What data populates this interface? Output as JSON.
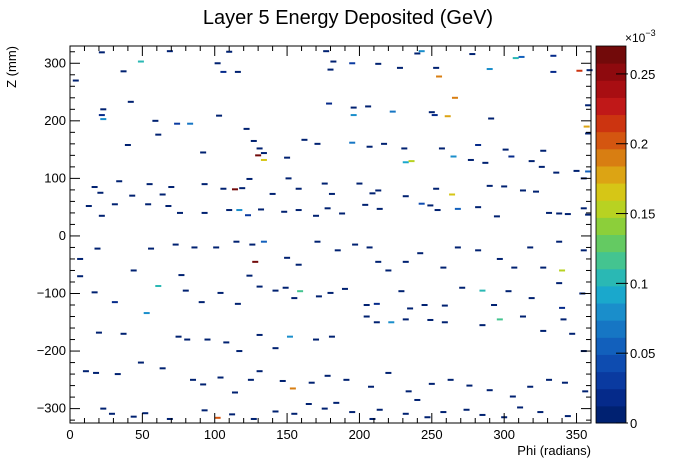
{
  "chart_data": {
    "type": "heatmap",
    "title": "Layer 5 Energy Deposited (GeV)",
    "xlabel": "Phi (radians)",
    "ylabel": "Z (mm)",
    "xlim": [
      0,
      360
    ],
    "ylim": [
      -325,
      330
    ],
    "x_ticks": [
      0,
      50,
      100,
      150,
      200,
      250,
      300,
      350
    ],
    "y_ticks": [
      -300,
      -200,
      -100,
      0,
      100,
      200,
      300
    ],
    "colorbar": {
      "min": 0,
      "max": 0.00027,
      "ticks": [
        0,
        0.05,
        0.1,
        0.15,
        0.2,
        0.25
      ],
      "tick_labels": [
        "0",
        "0.05",
        "0.1",
        "0.15",
        "0.2",
        "0.25"
      ],
      "multiplier_label": "×10",
      "multiplier_exponent": "−3",
      "colors": [
        "#002171",
        "#052a8a",
        "#0a3aa0",
        "#0e4cb0",
        "#1260bc",
        "#1676c4",
        "#1a8ecb",
        "#1aa8cc",
        "#2ab8b4",
        "#44c490",
        "#64ca62",
        "#8ccf3a",
        "#b8d222",
        "#d6c616",
        "#dca414",
        "#d87e12",
        "#d45610",
        "#cc3410",
        "#c01818",
        "#a80e12",
        "#8e0a0e",
        "#720a0a"
      ]
    },
    "points": [
      [
        22,
        319,
        0.01
      ],
      [
        69,
        321,
        0.01
      ],
      [
        110,
        320,
        0.01
      ],
      [
        177,
        321,
        0.01
      ],
      [
        243,
        321,
        0.08
      ],
      [
        240,
        317,
        0.01
      ],
      [
        278,
        316,
        0.01
      ],
      [
        308,
        309,
        0.1
      ],
      [
        312,
        311,
        0.05
      ],
      [
        334,
        313,
        0.02
      ],
      [
        37,
        286,
        0.01
      ],
      [
        49,
        303,
        0.1
      ],
      [
        102,
        300,
        0.01
      ],
      [
        106,
        285,
        0.02
      ],
      [
        116,
        285,
        0.01
      ],
      [
        182,
        303,
        0.01
      ],
      [
        180,
        289,
        0.01
      ],
      [
        195,
        300,
        0.03
      ],
      [
        213,
        299,
        0.01
      ],
      [
        228,
        292,
        0.01
      ],
      [
        253,
        292,
        0.01
      ],
      [
        255,
        277,
        0.19
      ],
      [
        290,
        290,
        0.08
      ],
      [
        334,
        285,
        0.02
      ],
      [
        352,
        287,
        0.22
      ],
      [
        359,
        288,
        0.01
      ],
      [
        4,
        270,
        0.01
      ],
      [
        42,
        233,
        0.01
      ],
      [
        23,
        220,
        0.01
      ],
      [
        22,
        210,
        0.02
      ],
      [
        23,
        203,
        0.08
      ],
      [
        59,
        200,
        0.01
      ],
      [
        74,
        195,
        0.03
      ],
      [
        83,
        195,
        0.07
      ],
      [
        103,
        209,
        0.01
      ],
      [
        179,
        230,
        0.02
      ],
      [
        196,
        223,
        0.01
      ],
      [
        196,
        210,
        0.08
      ],
      [
        206,
        225,
        0.01
      ],
      [
        223,
        216,
        0.07
      ],
      [
        250,
        215,
        0.01
      ],
      [
        252,
        210,
        0.02
      ],
      [
        261,
        208,
        0.18
      ],
      [
        266,
        240,
        0.19
      ],
      [
        291,
        204,
        0.01
      ],
      [
        358,
        227,
        0.01
      ],
      [
        357,
        190,
        0.18
      ],
      [
        358,
        178,
        0.01
      ],
      [
        40,
        158,
        0.01
      ],
      [
        61,
        176,
        0.01
      ],
      [
        92,
        145,
        0.01
      ],
      [
        122,
        186,
        0.01
      ],
      [
        127,
        165,
        0.01
      ],
      [
        131,
        152,
        0.01
      ],
      [
        134,
        144,
        0.01
      ],
      [
        130,
        140,
        0.27
      ],
      [
        134,
        132,
        0.17
      ],
      [
        150,
        136,
        0.01
      ],
      [
        162,
        167,
        0.01
      ],
      [
        171,
        160,
        0.01
      ],
      [
        195,
        162,
        0.07
      ],
      [
        207,
        155,
        0.01
      ],
      [
        217,
        160,
        0.01
      ],
      [
        231,
        152,
        0.01
      ],
      [
        232,
        128,
        0.09
      ],
      [
        236,
        130,
        0.15
      ],
      [
        257,
        152,
        0.01
      ],
      [
        265,
        138,
        0.08
      ],
      [
        277,
        132,
        0.01
      ],
      [
        282,
        158,
        0.02
      ],
      [
        287,
        127,
        0.01
      ],
      [
        301,
        150,
        0.01
      ],
      [
        305,
        138,
        0.02
      ],
      [
        319,
        130,
        0.01
      ],
      [
        327,
        148,
        0.01
      ],
      [
        326,
        120,
        0.01
      ],
      [
        336,
        110,
        0.01
      ],
      [
        350,
        113,
        0.01
      ],
      [
        355,
        100,
        0.01
      ],
      [
        358,
        112,
        0.06
      ],
      [
        17,
        85,
        0.01
      ],
      [
        21,
        75,
        0.01
      ],
      [
        34,
        95,
        0.01
      ],
      [
        43,
        70,
        0.01
      ],
      [
        55,
        90,
        0.01
      ],
      [
        64,
        72,
        0.01
      ],
      [
        70,
        85,
        0.01
      ],
      [
        93,
        90,
        0.01
      ],
      [
        106,
        82,
        0.01
      ],
      [
        114,
        81,
        0.27
      ],
      [
        119,
        83,
        0.01
      ],
      [
        124,
        99,
        0.01
      ],
      [
        140,
        73,
        0.01
      ],
      [
        151,
        100,
        0.01
      ],
      [
        158,
        82,
        0.01
      ],
      [
        176,
        91,
        0.01
      ],
      [
        181,
        73,
        0.01
      ],
      [
        200,
        91,
        0.01
      ],
      [
        209,
        74,
        0.01
      ],
      [
        213,
        79,
        0.01
      ],
      [
        232,
        69,
        0.01
      ],
      [
        253,
        82,
        0.01
      ],
      [
        264,
        72,
        0.16
      ],
      [
        290,
        87,
        0.01
      ],
      [
        300,
        86,
        0.01
      ],
      [
        313,
        79,
        0.01
      ],
      [
        322,
        77,
        0.01
      ],
      [
        13,
        52,
        0.01
      ],
      [
        22,
        35,
        0.01
      ],
      [
        31,
        55,
        0.01
      ],
      [
        54,
        55,
        0.01
      ],
      [
        68,
        52,
        0.01
      ],
      [
        76,
        40,
        0.01
      ],
      [
        93,
        40,
        0.01
      ],
      [
        110,
        45,
        0.01
      ],
      [
        117,
        45,
        0.08
      ],
      [
        123,
        36,
        0.03
      ],
      [
        132,
        46,
        0.01
      ],
      [
        148,
        42,
        0.01
      ],
      [
        158,
        45,
        0.01
      ],
      [
        170,
        35,
        0.01
      ],
      [
        178,
        48,
        0.01
      ],
      [
        188,
        39,
        0.01
      ],
      [
        204,
        54,
        0.01
      ],
      [
        214,
        47,
        0.01
      ],
      [
        243,
        56,
        0.04
      ],
      [
        249,
        53,
        0.01
      ],
      [
        254,
        45,
        0.01
      ],
      [
        268,
        47,
        0.06
      ],
      [
        282,
        50,
        0.01
      ],
      [
        295,
        34,
        0.01
      ],
      [
        331,
        40,
        0.01
      ],
      [
        338,
        39,
        0.01
      ],
      [
        344,
        38,
        0.01
      ],
      [
        355,
        48,
        0.01
      ],
      [
        358,
        37,
        0.01
      ],
      [
        7,
        -40,
        0.01
      ],
      [
        19,
        -22,
        0.01
      ],
      [
        44,
        -60,
        0.01
      ],
      [
        56,
        -22,
        0.01
      ],
      [
        73,
        -15,
        0.01
      ],
      [
        86,
        -20,
        0.01
      ],
      [
        101,
        -20,
        0.01
      ],
      [
        115,
        -10,
        0.01
      ],
      [
        126,
        -15,
        0.01
      ],
      [
        128,
        -45,
        0.27
      ],
      [
        134,
        -10,
        0.05
      ],
      [
        150,
        -38,
        0.01
      ],
      [
        158,
        -50,
        0.01
      ],
      [
        171,
        -10,
        0.01
      ],
      [
        185,
        -25,
        0.01
      ],
      [
        197,
        -15,
        0.01
      ],
      [
        207,
        -20,
        0.01
      ],
      [
        213,
        -45,
        0.01
      ],
      [
        220,
        -60,
        0.01
      ],
      [
        232,
        -45,
        0.01
      ],
      [
        242,
        -30,
        0.01
      ],
      [
        258,
        -55,
        0.01
      ],
      [
        268,
        -20,
        0.01
      ],
      [
        282,
        -25,
        0.01
      ],
      [
        297,
        -40,
        0.01
      ],
      [
        307,
        -55,
        0.01
      ],
      [
        318,
        -20,
        0.01
      ],
      [
        327,
        -55,
        0.01
      ],
      [
        338,
        -10,
        0.01
      ],
      [
        340,
        -60,
        0.15
      ],
      [
        355,
        -25,
        0.01
      ],
      [
        7,
        -70,
        0.01
      ],
      [
        17,
        -98,
        0.01
      ],
      [
        31,
        -115,
        0.02
      ],
      [
        53,
        -134,
        0.08
      ],
      [
        61,
        -87,
        0.1
      ],
      [
        77,
        -68,
        0.01
      ],
      [
        80,
        -95,
        0.01
      ],
      [
        91,
        -115,
        0.01
      ],
      [
        104,
        -99,
        0.01
      ],
      [
        116,
        -118,
        0.01
      ],
      [
        124,
        -69,
        0.01
      ],
      [
        131,
        -88,
        0.01
      ],
      [
        142,
        -95,
        0.01
      ],
      [
        149,
        -90,
        0.01
      ],
      [
        155,
        -108,
        0.01
      ],
      [
        159,
        -96,
        0.12
      ],
      [
        172,
        -105,
        0.01
      ],
      [
        180,
        -99,
        0.01
      ],
      [
        190,
        -92,
        0.01
      ],
      [
        205,
        -120,
        0.01
      ],
      [
        212,
        -118,
        0.02
      ],
      [
        229,
        -96,
        0.01
      ],
      [
        235,
        -126,
        0.01
      ],
      [
        245,
        -120,
        0.01
      ],
      [
        259,
        -121,
        0.01
      ],
      [
        271,
        -90,
        0.01
      ],
      [
        285,
        -95,
        0.1
      ],
      [
        293,
        -120,
        0.01
      ],
      [
        303,
        -96,
        0.01
      ],
      [
        319,
        -108,
        0.01
      ],
      [
        338,
        -82,
        0.01
      ],
      [
        340,
        -125,
        0.02
      ],
      [
        354,
        -100,
        0.01
      ],
      [
        20,
        -168,
        0.01
      ],
      [
        37,
        -170,
        0.01
      ],
      [
        75,
        -175,
        0.01
      ],
      [
        81,
        -180,
        0.01
      ],
      [
        95,
        -180,
        0.01
      ],
      [
        108,
        -185,
        0.01
      ],
      [
        117,
        -200,
        0.01
      ],
      [
        131,
        -172,
        0.01
      ],
      [
        142,
        -195,
        0.01
      ],
      [
        152,
        -175,
        0.08
      ],
      [
        170,
        -180,
        0.01
      ],
      [
        181,
        -175,
        0.01
      ],
      [
        205,
        -140,
        0.01
      ],
      [
        212,
        -150,
        0.01
      ],
      [
        222,
        -150,
        0.08
      ],
      [
        232,
        -145,
        0.01
      ],
      [
        249,
        -146,
        0.01
      ],
      [
        259,
        -150,
        0.01
      ],
      [
        285,
        -155,
        0.01
      ],
      [
        297,
        -145,
        0.12
      ],
      [
        313,
        -140,
        0.01
      ],
      [
        327,
        -165,
        0.01
      ],
      [
        341,
        -145,
        0.01
      ],
      [
        347,
        -170,
        0.01
      ],
      [
        355,
        -200,
        0.01
      ],
      [
        11,
        -235,
        0.01
      ],
      [
        18,
        -238,
        0.01
      ],
      [
        33,
        -240,
        0.01
      ],
      [
        49,
        -220,
        0.01
      ],
      [
        64,
        -230,
        0.01
      ],
      [
        85,
        -250,
        0.01
      ],
      [
        92,
        -258,
        0.01
      ],
      [
        104,
        -246,
        0.01
      ],
      [
        114,
        -272,
        0.01
      ],
      [
        125,
        -250,
        0.01
      ],
      [
        131,
        -235,
        0.01
      ],
      [
        147,
        -252,
        0.01
      ],
      [
        154,
        -265,
        0.19
      ],
      [
        167,
        -255,
        0.01
      ],
      [
        178,
        -243,
        0.01
      ],
      [
        191,
        -250,
        0.01
      ],
      [
        208,
        -262,
        0.01
      ],
      [
        220,
        -238,
        0.01
      ],
      [
        234,
        -270,
        0.01
      ],
      [
        240,
        -285,
        0.01
      ],
      [
        250,
        -257,
        0.01
      ],
      [
        263,
        -250,
        0.01
      ],
      [
        276,
        -260,
        0.01
      ],
      [
        290,
        -268,
        0.01
      ],
      [
        306,
        -279,
        0.01
      ],
      [
        318,
        -262,
        0.01
      ],
      [
        331,
        -250,
        0.01
      ],
      [
        342,
        -255,
        0.01
      ],
      [
        356,
        -270,
        0.01
      ],
      [
        23,
        -300,
        0.01
      ],
      [
        29,
        -309,
        0.01
      ],
      [
        44,
        -314,
        0.01
      ],
      [
        52,
        -308,
        0.01
      ],
      [
        69,
        -318,
        0.01
      ],
      [
        93,
        -303,
        0.01
      ],
      [
        102,
        -316,
        0.2
      ],
      [
        112,
        -310,
        0.01
      ],
      [
        127,
        -318,
        0.01
      ],
      [
        142,
        -305,
        0.01
      ],
      [
        155,
        -309,
        0.01
      ],
      [
        165,
        -292,
        0.01
      ],
      [
        176,
        -300,
        0.01
      ],
      [
        184,
        -290,
        0.01
      ],
      [
        195,
        -306,
        0.01
      ],
      [
        209,
        -318,
        0.01
      ],
      [
        214,
        -302,
        0.01
      ],
      [
        232,
        -309,
        0.01
      ],
      [
        247,
        -315,
        0.01
      ],
      [
        258,
        -306,
        0.01
      ],
      [
        274,
        -302,
        0.01
      ],
      [
        285,
        -311,
        0.01
      ],
      [
        300,
        -315,
        0.01
      ],
      [
        311,
        -298,
        0.01
      ],
      [
        325,
        -306,
        0.01
      ],
      [
        344,
        -313,
        0.01
      ]
    ]
  }
}
